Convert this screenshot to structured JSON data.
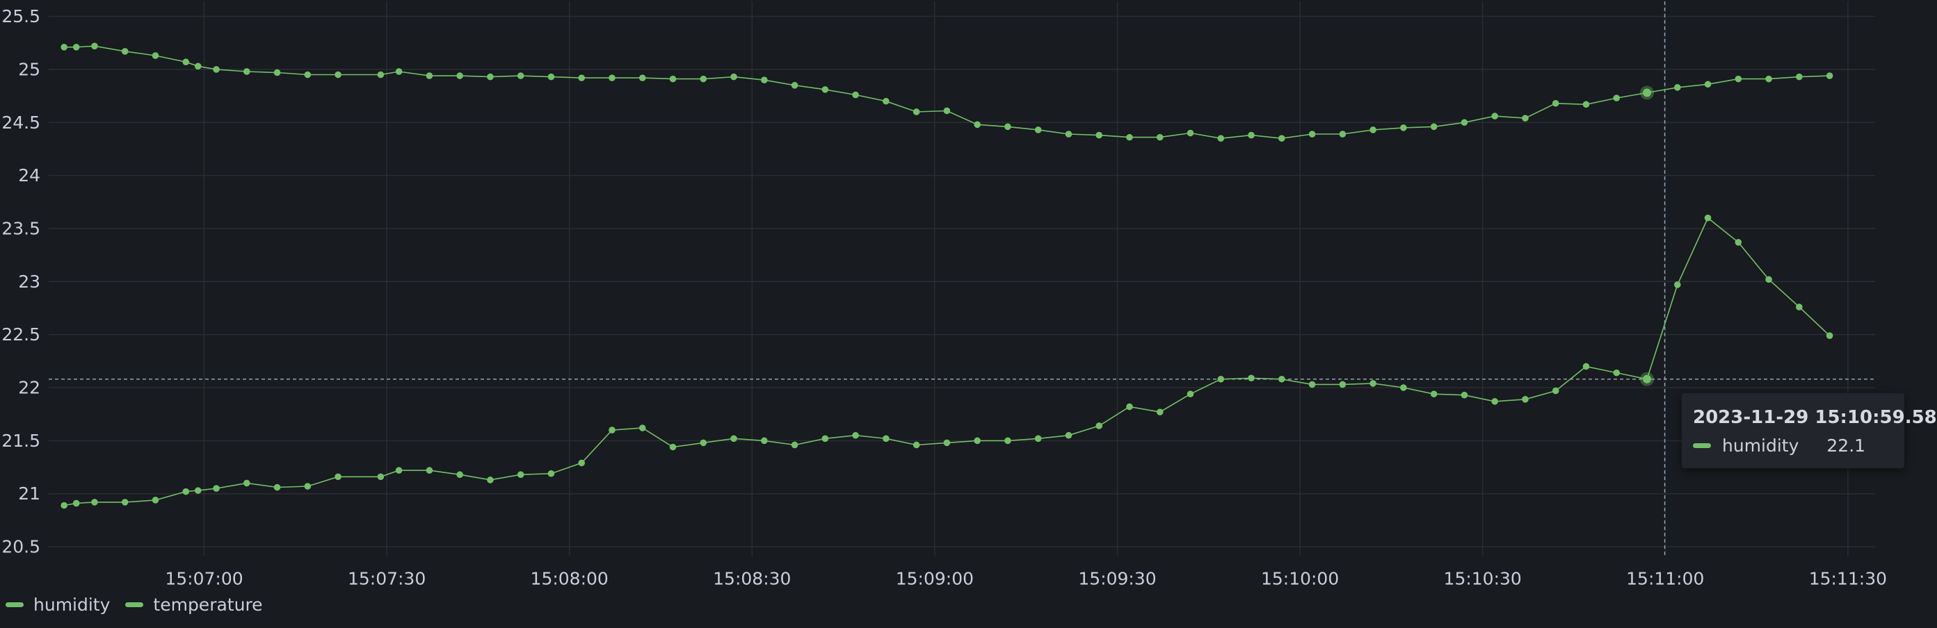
{
  "chart_data": {
    "type": "line",
    "title": "",
    "xlabel": "",
    "ylabel": "",
    "x": [
      "15:06:37",
      "15:06:39",
      "15:06:42",
      "15:06:47",
      "15:06:52",
      "15:06:57",
      "15:06:59",
      "15:07:02",
      "15:07:07",
      "15:07:12",
      "15:07:17",
      "15:07:22",
      "15:07:29",
      "15:07:32",
      "15:07:37",
      "15:07:42",
      "15:07:47",
      "15:07:52",
      "15:07:57",
      "15:08:02",
      "15:08:07",
      "15:08:12",
      "15:08:17",
      "15:08:22",
      "15:08:27",
      "15:08:32",
      "15:08:37",
      "15:08:42",
      "15:08:47",
      "15:08:52",
      "15:08:57",
      "15:09:02",
      "15:09:07",
      "15:09:12",
      "15:09:17",
      "15:09:22",
      "15:09:27",
      "15:09:32",
      "15:09:37",
      "15:09:42",
      "15:09:47",
      "15:09:52",
      "15:09:57",
      "15:10:02",
      "15:10:07",
      "15:10:12",
      "15:10:17",
      "15:10:22",
      "15:10:27",
      "15:10:32",
      "15:10:37",
      "15:10:42",
      "15:10:47",
      "15:10:52",
      "15:10:57",
      "15:11:02",
      "15:11:07",
      "15:11:12",
      "15:11:17",
      "15:11:22",
      "15:11:27"
    ],
    "series": [
      {
        "name": "humidity",
        "color": "#73bf69",
        "values": [
          20.89,
          20.91,
          20.92,
          20.92,
          20.94,
          21.02,
          21.03,
          21.05,
          21.1,
          21.06,
          21.07,
          21.16,
          21.16,
          21.22,
          21.22,
          21.18,
          21.13,
          21.18,
          21.19,
          21.29,
          21.6,
          21.62,
          21.44,
          21.48,
          21.52,
          21.5,
          21.46,
          21.52,
          21.55,
          21.52,
          21.46,
          21.48,
          21.5,
          21.5,
          21.52,
          21.55,
          21.64,
          21.82,
          21.77,
          21.94,
          22.08,
          22.09,
          22.08,
          22.03,
          22.03,
          22.04,
          22.0,
          21.94,
          21.93,
          21.87,
          21.89,
          21.97,
          22.2,
          22.14,
          22.08,
          22.97,
          23.6,
          23.37,
          23.02,
          22.76,
          22.49
        ]
      },
      {
        "name": "temperature",
        "color": "#73bf69",
        "values": [
          25.21,
          25.21,
          25.22,
          25.17,
          25.13,
          25.07,
          25.03,
          25.0,
          24.98,
          24.97,
          24.95,
          24.95,
          24.95,
          24.98,
          24.94,
          24.94,
          24.93,
          24.94,
          24.93,
          24.92,
          24.92,
          24.92,
          24.91,
          24.91,
          24.93,
          24.9,
          24.85,
          24.81,
          24.76,
          24.7,
          24.6,
          24.61,
          24.48,
          24.46,
          24.43,
          24.39,
          24.38,
          24.36,
          24.36,
          24.4,
          24.35,
          24.38,
          24.35,
          24.39,
          24.39,
          24.43,
          24.45,
          24.46,
          24.5,
          24.56,
          24.54,
          24.68,
          24.67,
          24.73,
          24.78,
          24.83,
          24.86,
          24.91,
          24.91,
          24.93,
          24.94
        ]
      }
    ],
    "yticks": [
      "20.5",
      "21",
      "21.5",
      "22",
      "22.5",
      "23",
      "23.5",
      "24",
      "24.5",
      "25",
      "25.5"
    ],
    "xticks": [
      "15:07:00",
      "15:07:30",
      "15:08:00",
      "15:08:30",
      "15:09:00",
      "15:09:30",
      "15:10:00",
      "15:10:30",
      "15:11:00",
      "15:11:30"
    ],
    "ylim": [
      20.5,
      25.5
    ],
    "xlim": [
      "15:06:37",
      "15:11:31"
    ],
    "grid": true,
    "legend": "bottom-left",
    "crosshair": {
      "time": "15:10:59",
      "value": 22.08
    }
  },
  "legend": {
    "items": [
      {
        "label": "humidity",
        "color": "#73bf69"
      },
      {
        "label": "temperature",
        "color": "#73bf69"
      }
    ]
  },
  "tooltip": {
    "time": "2023-11-29 15:10:59.58",
    "series": "humidity",
    "value": "22.1",
    "color": "#73bf69"
  }
}
